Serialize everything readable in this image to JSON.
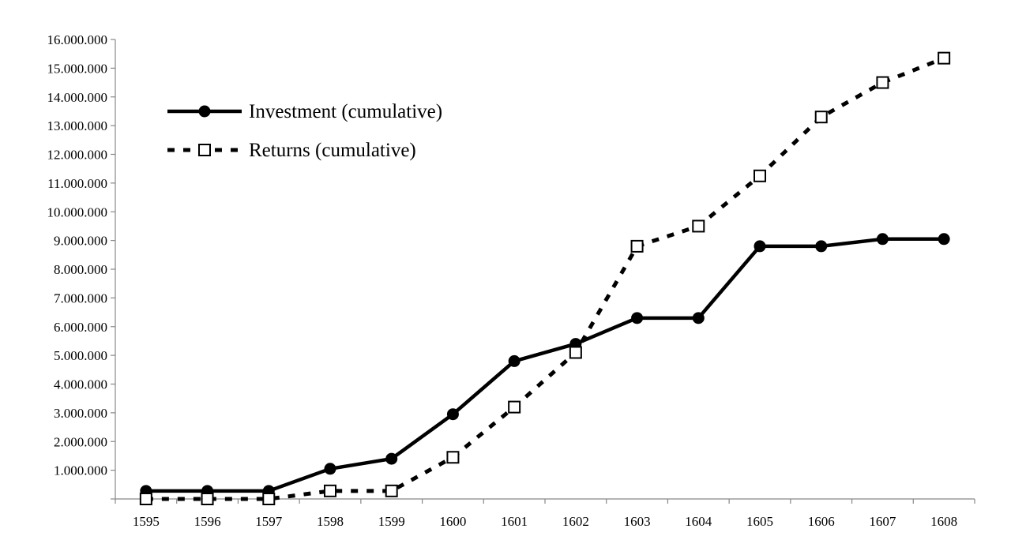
{
  "chart_data": {
    "type": "line",
    "title": "",
    "xlabel": "",
    "ylabel": "",
    "categories": [
      "1595",
      "1596",
      "1597",
      "1598",
      "1599",
      "1600",
      "1601",
      "1602",
      "1603",
      "1604",
      "1605",
      "1606",
      "1607",
      "1608"
    ],
    "ylim": [
      0,
      16000000
    ],
    "ytick_values": [
      1000000,
      2000000,
      3000000,
      4000000,
      5000000,
      6000000,
      7000000,
      8000000,
      9000000,
      10000000,
      11000000,
      12000000,
      13000000,
      14000000,
      15000000,
      16000000
    ],
    "ytick_labels": [
      "1.000.000",
      "2.000.000",
      "3.000.000",
      "4.000.000",
      "5.000.000",
      "6.000.000",
      "7.000.000",
      "8.000.000",
      "9.000.000",
      "10.000.000",
      "11.000.000",
      "12.000.000",
      "13.000.000",
      "14.000.000",
      "15.000.000",
      "16.000.000"
    ],
    "grid": false,
    "legend_position": "top-left",
    "series": [
      {
        "name": "Investment (cumulative)",
        "style": "solid",
        "marker": "filled-circle",
        "color": "#000000",
        "values": [
          280000,
          280000,
          280000,
          1050000,
          1400000,
          2950000,
          4800000,
          5400000,
          6300000,
          6300000,
          8800000,
          8800000,
          9050000,
          9050000
        ]
      },
      {
        "name": "Returns (cumulative)",
        "style": "dashed",
        "marker": "open-square",
        "color": "#000000",
        "values": [
          0,
          0,
          0,
          280000,
          280000,
          1450000,
          3200000,
          5100000,
          8800000,
          9500000,
          11250000,
          13300000,
          14500000,
          15350000
        ]
      }
    ]
  }
}
